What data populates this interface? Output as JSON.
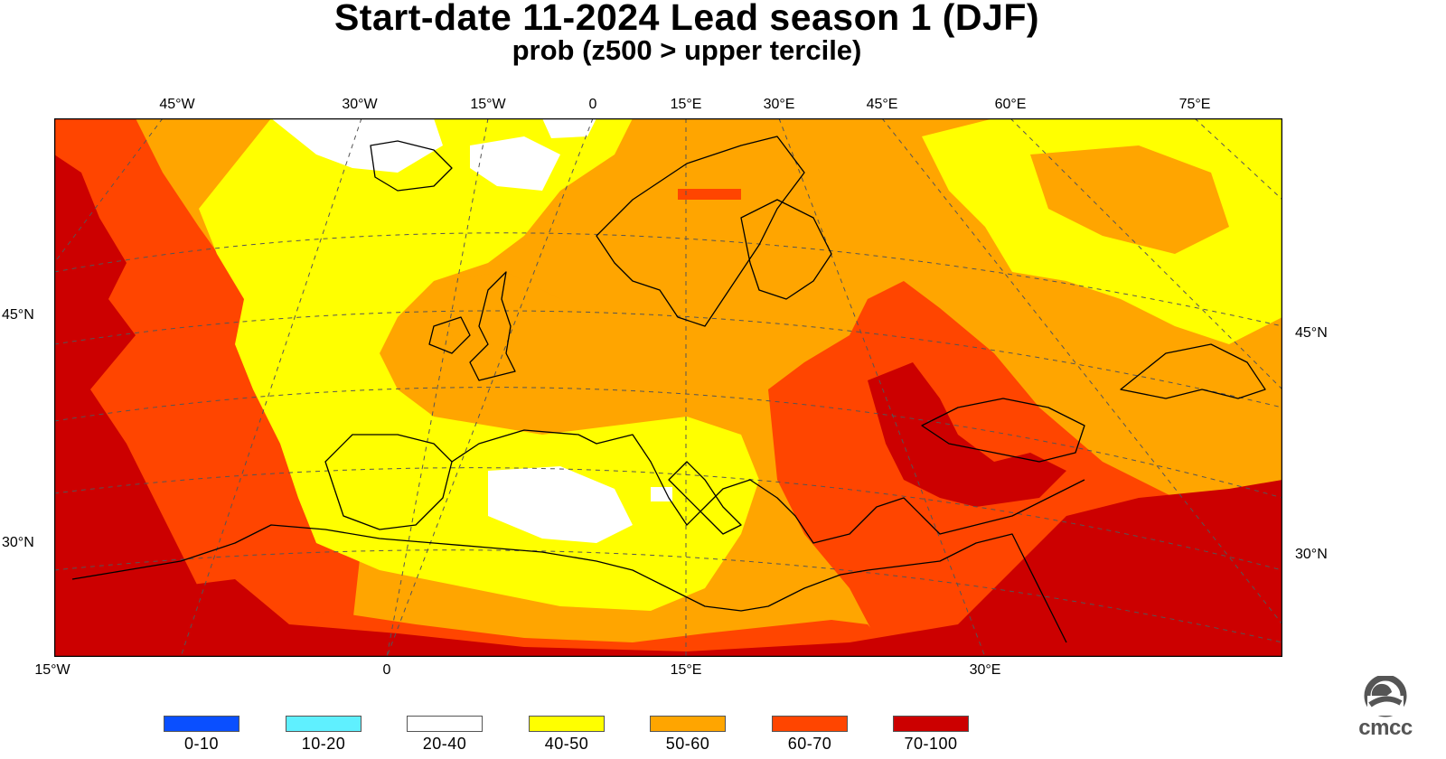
{
  "header": {
    "title": "Start-date 11-2024 Lead season 1 (DJF)",
    "subtitle": "prob (z500 > upper tercile)"
  },
  "axes": {
    "top_lon": [
      "45°W",
      "30°W",
      "15°W",
      "0",
      "15°E",
      "30°E",
      "45°E",
      "60°E",
      "75°E"
    ],
    "bottom_lon": [
      "15°W",
      "0",
      "15°E",
      "30°E"
    ],
    "left_lat": [
      "45°N",
      "30°N"
    ],
    "right_lat": [
      "45°N",
      "30°N"
    ]
  },
  "legend": [
    {
      "label": "0-10",
      "color": "#0a4fff"
    },
    {
      "label": "10-20",
      "color": "#5ff0ff"
    },
    {
      "label": "20-40",
      "color": "#ffffff"
    },
    {
      "label": "40-50",
      "color": "#ffff00"
    },
    {
      "label": "50-60",
      "color": "#ffa500"
    },
    {
      "label": "60-70",
      "color": "#ff4500"
    },
    {
      "label": "70-100",
      "color": "#cc0000"
    }
  ],
  "logo": {
    "text": "cmcc"
  }
}
